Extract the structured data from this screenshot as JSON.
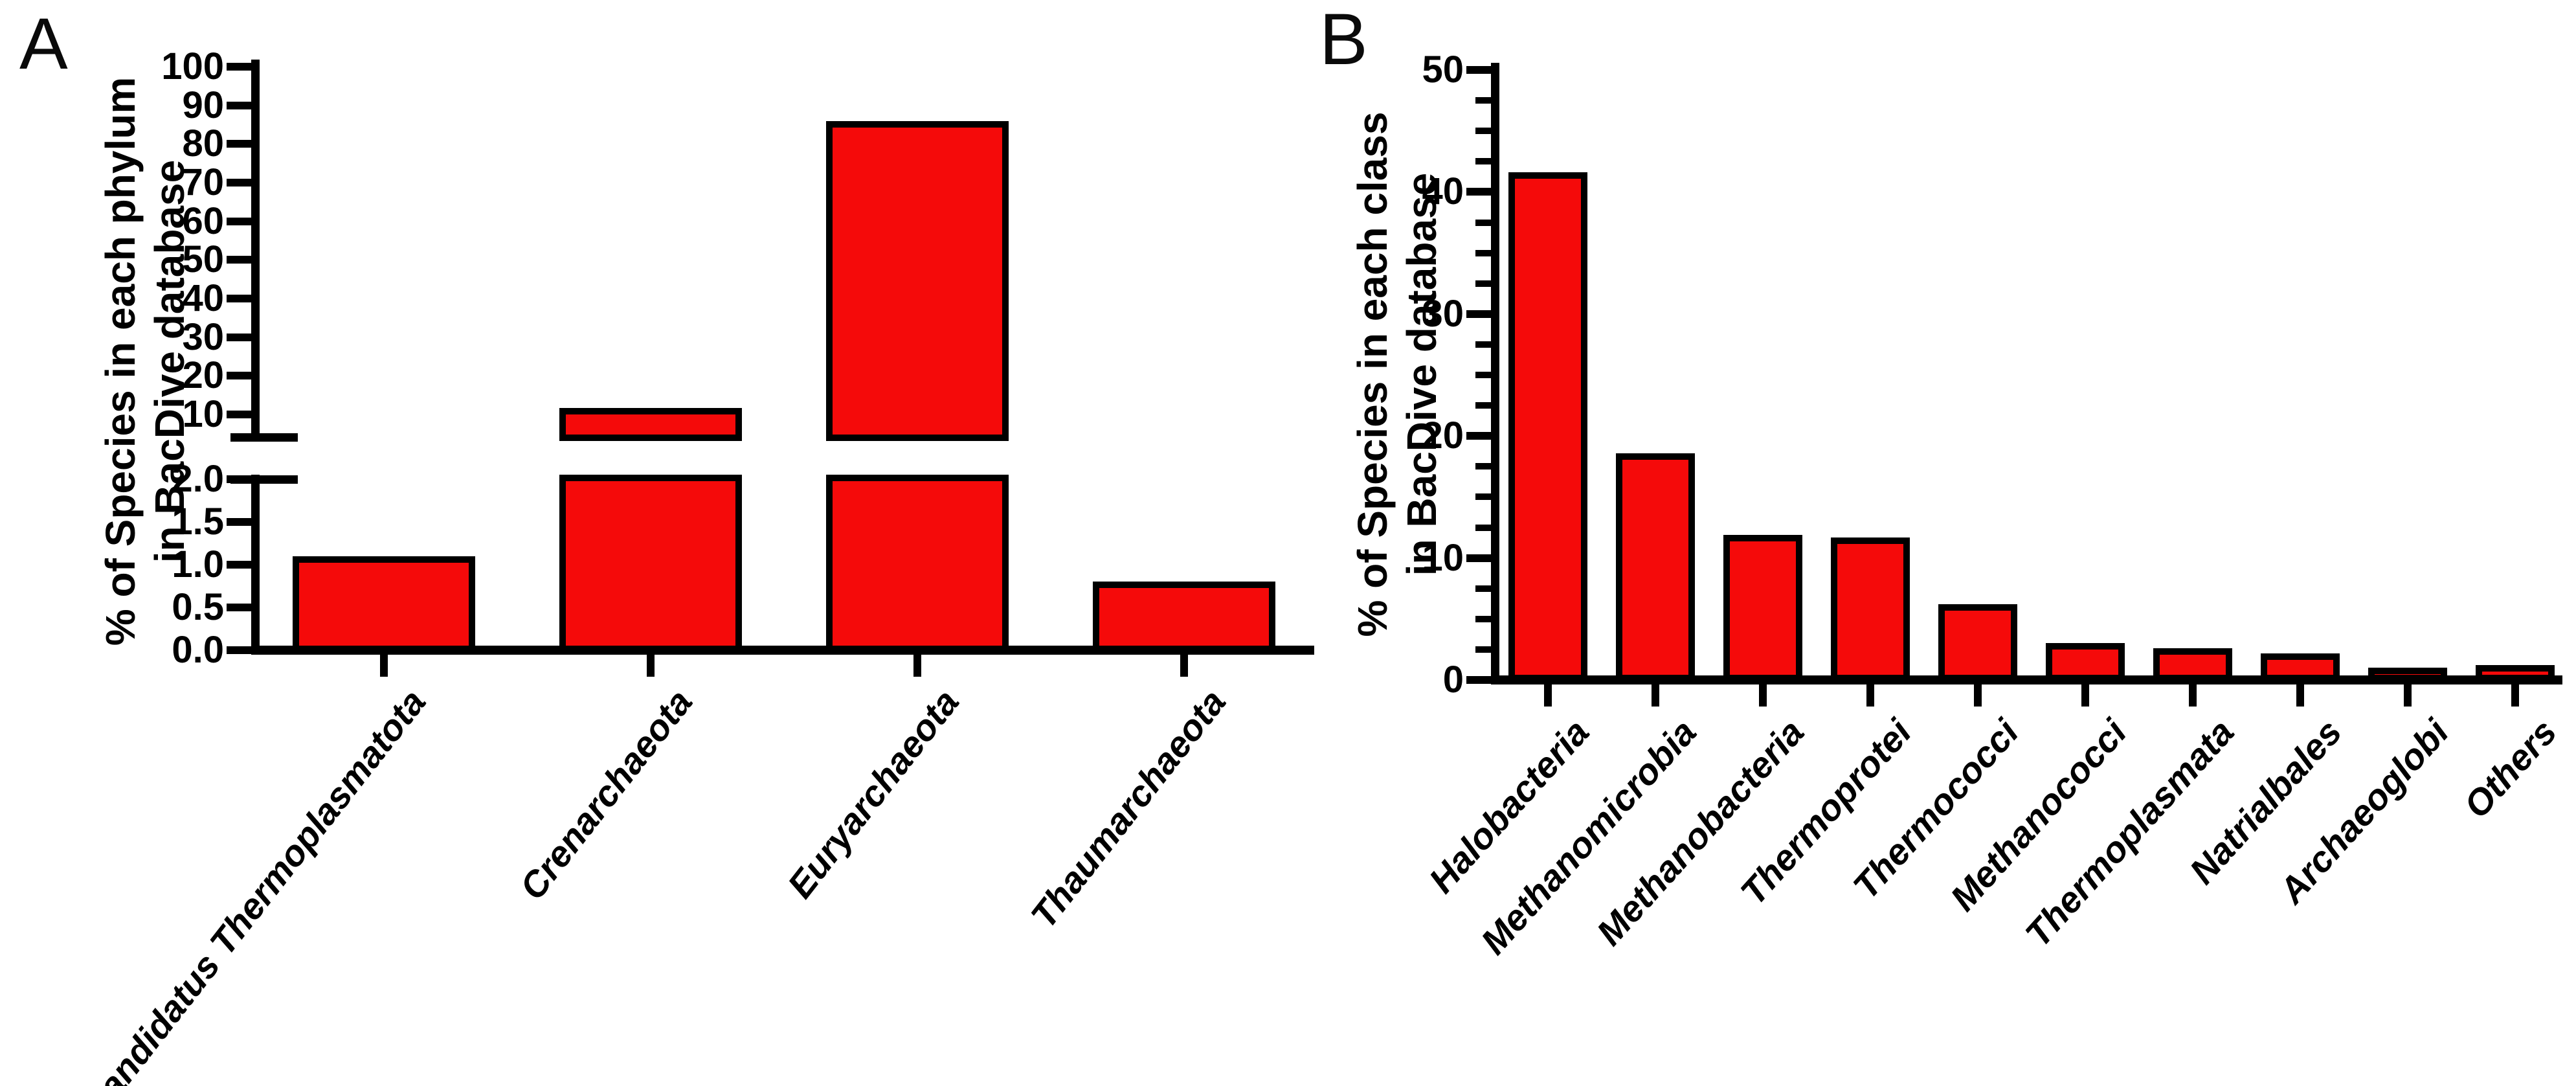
{
  "figure": {
    "panel_a_letter": "A",
    "panel_b_letter": "B",
    "background": "#FFFFFF"
  },
  "colors": {
    "bar_fill": "#F50A0A",
    "bar_stroke": "#000000",
    "axis": "#000000",
    "text": "#000000"
  },
  "chart_data": [
    {
      "panel": "A",
      "type": "bar",
      "title": "",
      "xlabel": "",
      "ylabel": "% of Species in each phylum\nin BacDive database",
      "categories": [
        "Candidatus Thermoplasmatota",
        "Crenarchaeota",
        "Euryarchaeota",
        "Thaumarchaeota"
      ],
      "values": [
        1.1,
        11.7,
        86,
        0.8
      ],
      "axis_break": true,
      "upper_segment_range": [
        10,
        100
      ],
      "lower_segment_range": [
        0,
        2.0
      ],
      "yticks_upper_labels": [
        "100",
        "90",
        "80",
        "70",
        "60",
        "50",
        "40",
        "30",
        "20",
        "10"
      ],
      "yticks_lower_labels": [
        "2.0",
        "1.5",
        "1.0",
        "0.5",
        "0.0"
      ],
      "grid": false,
      "legend": false
    },
    {
      "panel": "B",
      "type": "bar",
      "title": "",
      "xlabel": "",
      "ylabel": "% of Species in each class\nin BacDive database",
      "categories": [
        "Halobacteria",
        "Methanomicrobia",
        "Methanobacteria",
        "Thermoprotei",
        "Thermococci",
        "Methanococci",
        "Thermoplasmata",
        "Natrialbales",
        "Archaeoglobi",
        "Others"
      ],
      "values": [
        41.6,
        18.6,
        11.9,
        11.7,
        6.2,
        3.0,
        2.6,
        2.2,
        1.0,
        1.2
      ],
      "ylim": [
        0,
        50
      ],
      "ytick_labels": [
        "50",
        "40",
        "30",
        "20",
        "10",
        "0"
      ],
      "minor_tick_step": 2.5,
      "grid": false,
      "legend": false
    }
  ]
}
